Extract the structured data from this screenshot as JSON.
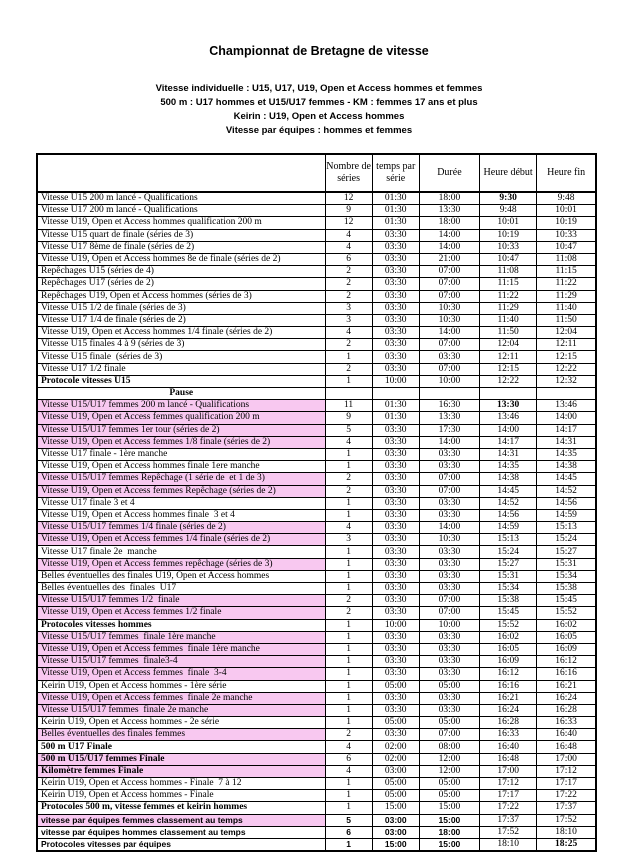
{
  "page": {
    "title": "Championnat de Bretagne de vitesse",
    "subtitle_lines": [
      "Vitesse individuelle : U15, U17, U19, Open et Access hommes et femmes",
      "500 m : U17 hommes et U15/U17 femmes - KM : femmes 17 ans et plus",
      "Keirin :  U19, Open et Access hommes",
      "Vitesse par équipes : hommes et femmes"
    ]
  },
  "colors": {
    "highlight_pink": "#F8C8F0",
    "border": "#000000"
  },
  "table": {
    "headers": {
      "event": "",
      "series": "Nombre de séries",
      "time_per_series": "temps par série",
      "duration": "Durée",
      "start": "Heure début",
      "end": "Heure fin"
    },
    "rows": [
      {
        "label": "Vitesse U15 200 m lancé - Qualifications",
        "cells": [
          "12",
          "01:30",
          "18:00",
          "9:30",
          "9:48"
        ],
        "pink": false,
        "bold": false,
        "sans": false,
        "center": false,
        "bold_cells": [
          3
        ]
      },
      {
        "label": "Vitesse U17 200 m lancé - Qualifications",
        "cells": [
          "9",
          "01:30",
          "13:30",
          "9:48",
          "10:01"
        ],
        "pink": false,
        "bold": false,
        "sans": false,
        "center": false,
        "bold_cells": []
      },
      {
        "label": "Vitesse U19, Open et Access hommes qualification 200 m",
        "cells": [
          "12",
          "01:30",
          "18:00",
          "10:01",
          "10:19"
        ],
        "pink": false,
        "bold": false,
        "sans": false,
        "center": false,
        "bold_cells": []
      },
      {
        "label": "Vitesse U15 quart de finale (séries de 3)",
        "cells": [
          "4",
          "03:30",
          "14:00",
          "10:19",
          "10:33"
        ],
        "pink": false,
        "bold": false,
        "sans": false,
        "center": false,
        "bold_cells": []
      },
      {
        "label": "Vitesse U17 8ème de finale (séries de 2)",
        "cells": [
          "4",
          "03:30",
          "14:00",
          "10:33",
          "10:47"
        ],
        "pink": false,
        "bold": false,
        "sans": false,
        "center": false,
        "bold_cells": []
      },
      {
        "label": "Vitesse U19, Open et Access hommes 8e de finale (séries de 2)",
        "cells": [
          "6",
          "03:30",
          "21:00",
          "10:47",
          "11:08"
        ],
        "pink": false,
        "bold": false,
        "sans": false,
        "center": false,
        "bold_cells": []
      },
      {
        "label": "Repêchages U15 (séries de 4)",
        "cells": [
          "2",
          "03:30",
          "07:00",
          "11:08",
          "11:15"
        ],
        "pink": false,
        "bold": false,
        "sans": false,
        "center": false,
        "bold_cells": []
      },
      {
        "label": "Repêchages U17 (séries de 2)",
        "cells": [
          "2",
          "03:30",
          "07:00",
          "11:15",
          "11:22"
        ],
        "pink": false,
        "bold": false,
        "sans": false,
        "center": false,
        "bold_cells": []
      },
      {
        "label": "Repêchages U19, Open et Access hommes (séries de 3)",
        "cells": [
          "2",
          "03:30",
          "07:00",
          "11:22",
          "11:29"
        ],
        "pink": false,
        "bold": false,
        "sans": false,
        "center": false,
        "bold_cells": []
      },
      {
        "label": "Vitesse U15 1/2 de finale (séries de 3)",
        "cells": [
          "3",
          "03:30",
          "10:30",
          "11:29",
          "11:40"
        ],
        "pink": false,
        "bold": false,
        "sans": false,
        "center": false,
        "bold_cells": []
      },
      {
        "label": "Vitesse U17 1/4 de finale (séries de 2)",
        "cells": [
          "3",
          "03:30",
          "10:30",
          "11:40",
          "11:50"
        ],
        "pink": false,
        "bold": false,
        "sans": false,
        "center": false,
        "bold_cells": []
      },
      {
        "label": "Vitesse U19, Open et Access hommes 1/4 finale (séries de 2)",
        "cells": [
          "4",
          "03:30",
          "14:00",
          "11:50",
          "12:04"
        ],
        "pink": false,
        "bold": false,
        "sans": false,
        "center": false,
        "bold_cells": []
      },
      {
        "label": "Vitesse U15 finales 4 à 9 (séries de 3)",
        "cells": [
          "2",
          "03:30",
          "07:00",
          "12:04",
          "12:11"
        ],
        "pink": false,
        "bold": false,
        "sans": false,
        "center": false,
        "bold_cells": []
      },
      {
        "label": "Vitesse U15 finale  (séries de 3)",
        "cells": [
          "1",
          "03:30",
          "03:30",
          "12:11",
          "12:15"
        ],
        "pink": false,
        "bold": false,
        "sans": false,
        "center": false,
        "bold_cells": []
      },
      {
        "label": "Vitesse U17 1/2 finale",
        "cells": [
          "2",
          "03:30",
          "07:00",
          "12:15",
          "12:22"
        ],
        "pink": false,
        "bold": false,
        "sans": false,
        "center": false,
        "bold_cells": []
      },
      {
        "label": "Protocole vitesses U15",
        "cells": [
          "1",
          "10:00",
          "10:00",
          "12:22",
          "12:32"
        ],
        "pink": false,
        "bold": true,
        "sans": false,
        "center": false,
        "bold_cells": []
      },
      {
        "label": "Pause",
        "cells": [
          "",
          "",
          "",
          "",
          ""
        ],
        "pink": false,
        "bold": true,
        "sans": false,
        "center": true,
        "bold_cells": []
      },
      {
        "label": "Vitesse U15/U17 femmes 200 m lancé - Qualifications",
        "cells": [
          "11",
          "01:30",
          "16:30",
          "13:30",
          "13:46"
        ],
        "pink": true,
        "bold": false,
        "sans": false,
        "center": false,
        "bold_cells": [
          3
        ]
      },
      {
        "label": "Vitesse U19, Open et Access femmes qualification 200 m",
        "cells": [
          "9",
          "01:30",
          "13:30",
          "13:46",
          "14:00"
        ],
        "pink": true,
        "bold": false,
        "sans": false,
        "center": false,
        "bold_cells": []
      },
      {
        "label": "Vitesse U15/U17 femmes 1er tour (séries de 2)",
        "cells": [
          "5",
          "03:30",
          "17:30",
          "14:00",
          "14:17"
        ],
        "pink": true,
        "bold": false,
        "sans": false,
        "center": false,
        "bold_cells": []
      },
      {
        "label": "Vitesse U19, Open et Access femmes 1/8 finale (séries de 2)",
        "cells": [
          "4",
          "03:30",
          "14:00",
          "14:17",
          "14:31"
        ],
        "pink": true,
        "bold": false,
        "sans": false,
        "center": false,
        "bold_cells": []
      },
      {
        "label": "Vitesse U17 finale - 1ère manche",
        "cells": [
          "1",
          "03:30",
          "03:30",
          "14:31",
          "14:35"
        ],
        "pink": false,
        "bold": false,
        "sans": false,
        "center": false,
        "bold_cells": []
      },
      {
        "label": "Vitesse U19, Open et Access hommes finale 1ere manche",
        "cells": [
          "1",
          "03:30",
          "03:30",
          "14:35",
          "14:38"
        ],
        "pink": false,
        "bold": false,
        "sans": false,
        "center": false,
        "bold_cells": []
      },
      {
        "label": "Vitesse U15/U17 femmes Repêchage (1 série de  et 1 de 3)",
        "cells": [
          "2",
          "03:30",
          "07:00",
          "14:38",
          "14:45"
        ],
        "pink": true,
        "bold": false,
        "sans": false,
        "center": false,
        "bold_cells": []
      },
      {
        "label": "Vitesse U19, Open et Access femmes Repêchage (séries de 2)",
        "cells": [
          "2",
          "03:30",
          "07:00",
          "14:45",
          "14:52"
        ],
        "pink": true,
        "bold": false,
        "sans": false,
        "center": false,
        "bold_cells": []
      },
      {
        "label": "Vitesse U17 finale 3 et 4",
        "cells": [
          "1",
          "03:30",
          "03:30",
          "14:52",
          "14:56"
        ],
        "pink": false,
        "bold": false,
        "sans": false,
        "center": false,
        "bold_cells": []
      },
      {
        "label": "Vitesse U19, Open et Access hommes finale  3 et 4",
        "cells": [
          "1",
          "03:30",
          "03:30",
          "14:56",
          "14:59"
        ],
        "pink": false,
        "bold": false,
        "sans": false,
        "center": false,
        "bold_cells": []
      },
      {
        "label": "Vitesse U15/U17 femmes 1/4 finale (séries de 2)",
        "cells": [
          "4",
          "03:30",
          "14:00",
          "14:59",
          "15:13"
        ],
        "pink": true,
        "bold": false,
        "sans": false,
        "center": false,
        "bold_cells": []
      },
      {
        "label": "Vitesse U19, Open et Access femmes 1/4 finale (séries de 2)",
        "cells": [
          "3",
          "03:30",
          "10:30",
          "15:13",
          "15:24"
        ],
        "pink": true,
        "bold": false,
        "sans": false,
        "center": false,
        "bold_cells": []
      },
      {
        "label": "Vitesse U17 finale 2e  manche",
        "cells": [
          "1",
          "03:30",
          "03:30",
          "15:24",
          "15:27"
        ],
        "pink": false,
        "bold": false,
        "sans": false,
        "center": false,
        "bold_cells": []
      },
      {
        "label": "Vitesse U19, Open et Access femmes repêchage (séries de 3)",
        "cells": [
          "1",
          "03:30",
          "03:30",
          "15:27",
          "15:31"
        ],
        "pink": true,
        "bold": false,
        "sans": false,
        "center": false,
        "bold_cells": []
      },
      {
        "label": "Belles éventuelles des finales U19, Open et Access hommes",
        "cells": [
          "1",
          "03:30",
          "03:30",
          "15:31",
          "15:34"
        ],
        "pink": false,
        "bold": false,
        "sans": false,
        "center": false,
        "bold_cells": []
      },
      {
        "label": "Belles éventuelles des  finales  U17",
        "cells": [
          "1",
          "03:30",
          "03:30",
          "15:34",
          "15:38"
        ],
        "pink": false,
        "bold": false,
        "sans": false,
        "center": false,
        "bold_cells": []
      },
      {
        "label": "Vitesse U15/U17 femmes 1/2  finale",
        "cells": [
          "2",
          "03:30",
          "07:00",
          "15:38",
          "15:45"
        ],
        "pink": true,
        "bold": false,
        "sans": false,
        "center": false,
        "bold_cells": []
      },
      {
        "label": "Vitesse U19, Open et Access femmes 1/2 finale",
        "cells": [
          "2",
          "03:30",
          "07:00",
          "15:45",
          "15:52"
        ],
        "pink": true,
        "bold": false,
        "sans": false,
        "center": false,
        "bold_cells": []
      },
      {
        "label": "Protocoles vitesses hommes",
        "cells": [
          "1",
          "10:00",
          "10:00",
          "15:52",
          "16:02"
        ],
        "pink": false,
        "bold": true,
        "sans": false,
        "center": false,
        "bold_cells": []
      },
      {
        "label": "Vitesse U15/U17 femmes  finale 1ère manche",
        "cells": [
          "1",
          "03:30",
          "03:30",
          "16:02",
          "16:05"
        ],
        "pink": true,
        "bold": false,
        "sans": false,
        "center": false,
        "bold_cells": []
      },
      {
        "label": "Vitesse U19, Open et Access femmes  finale 1ère manche",
        "cells": [
          "1",
          "03:30",
          "03:30",
          "16:05",
          "16:09"
        ],
        "pink": true,
        "bold": false,
        "sans": false,
        "center": false,
        "bold_cells": []
      },
      {
        "label": "Vitesse U15/U17 femmes  finale3-4",
        "cells": [
          "1",
          "03:30",
          "03:30",
          "16:09",
          "16:12"
        ],
        "pink": true,
        "bold": false,
        "sans": false,
        "center": false,
        "bold_cells": []
      },
      {
        "label": "Vitesse U19, Open et Access femmes  finale  3-4",
        "cells": [
          "1",
          "03:30",
          "03:30",
          "16:12",
          "16:16"
        ],
        "pink": true,
        "bold": false,
        "sans": false,
        "center": false,
        "bold_cells": []
      },
      {
        "label": "Keirin U19, Open et Access hommes - 1ère série",
        "cells": [
          "1",
          "05:00",
          "05:00",
          "16:16",
          "16:21"
        ],
        "pink": false,
        "bold": false,
        "sans": false,
        "center": false,
        "bold_cells": []
      },
      {
        "label": "Vitesse U19, Open et Access femmes  finale 2e manche",
        "cells": [
          "1",
          "03:30",
          "03:30",
          "16:21",
          "16:24"
        ],
        "pink": true,
        "bold": false,
        "sans": false,
        "center": false,
        "bold_cells": []
      },
      {
        "label": "Vitesse U15/U17 femmes  finale 2e manche",
        "cells": [
          "1",
          "03:30",
          "03:30",
          "16:24",
          "16:28"
        ],
        "pink": true,
        "bold": false,
        "sans": false,
        "center": false,
        "bold_cells": []
      },
      {
        "label": "Keirin U19, Open et Access hommes - 2e série",
        "cells": [
          "1",
          "05:00",
          "05:00",
          "16:28",
          "16:33"
        ],
        "pink": false,
        "bold": false,
        "sans": false,
        "center": false,
        "bold_cells": []
      },
      {
        "label": "Belles éventuelles des finales femmes",
        "cells": [
          "2",
          "03:30",
          "07:00",
          "16:33",
          "16:40"
        ],
        "pink": true,
        "bold": false,
        "sans": false,
        "center": false,
        "bold_cells": []
      },
      {
        "label": "500 m U17 Finale",
        "cells": [
          "4",
          "02:00",
          "08:00",
          "16:40",
          "16:48"
        ],
        "pink": false,
        "bold": true,
        "sans": false,
        "center": false,
        "bold_cells": []
      },
      {
        "label": "500 m U15/U17 femmes Finale",
        "cells": [
          "6",
          "02:00",
          "12:00",
          "16:48",
          "17:00"
        ],
        "pink": true,
        "bold": true,
        "sans": false,
        "center": false,
        "bold_cells": []
      },
      {
        "label": "Kilomètre femmes Finale",
        "cells": [
          "4",
          "03:00",
          "12:00",
          "17:00",
          "17:12"
        ],
        "pink": true,
        "bold": true,
        "sans": false,
        "center": false,
        "bold_cells": []
      },
      {
        "label": "Keirin U19, Open et Access hommes - Finale  7 à 12",
        "cells": [
          "1",
          "05:00",
          "05:00",
          "17:12",
          "17:17"
        ],
        "pink": false,
        "bold": false,
        "sans": false,
        "center": false,
        "bold_cells": []
      },
      {
        "label": "Keirin U19, Open et Access hommes - Finale",
        "cells": [
          "1",
          "05:00",
          "05:00",
          "17:17",
          "17:22"
        ],
        "pink": false,
        "bold": false,
        "sans": false,
        "center": false,
        "bold_cells": []
      },
      {
        "label": "Protocoles 500 m, vitesse femmes et keirin hommes",
        "cells": [
          "1",
          "15:00",
          "15:00",
          "17:22",
          "17:37"
        ],
        "pink": false,
        "bold": true,
        "sans": false,
        "center": false,
        "bold_cells": []
      },
      {
        "label": "vitesse par équipes femmes classement au temps",
        "cells": [
          "5",
          "03:00",
          "15:00",
          "17:37",
          "17:52"
        ],
        "pink": true,
        "bold": true,
        "sans": true,
        "center": false,
        "bold_cells": [
          0,
          1,
          2
        ]
      },
      {
        "label": "vitesse par équipes hommes classement au temps",
        "cells": [
          "6",
          "03:00",
          "18:00",
          "17:52",
          "18:10"
        ],
        "pink": false,
        "bold": true,
        "sans": true,
        "center": false,
        "bold_cells": [
          0,
          1,
          2
        ]
      },
      {
        "label": "Protocoles vitesses par équipes",
        "cells": [
          "1",
          "15:00",
          "15:00",
          "18:10",
          "18:25"
        ],
        "pink": false,
        "bold": true,
        "sans": true,
        "center": false,
        "bold_cells": [
          0,
          1,
          2,
          4
        ]
      }
    ]
  }
}
